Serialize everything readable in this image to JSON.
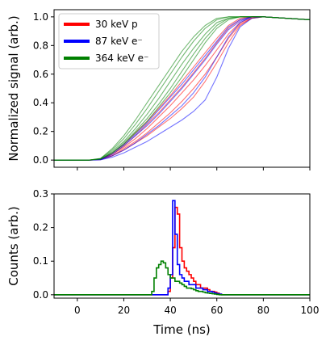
{
  "chart_data": [
    {
      "type": "line",
      "ylabel": "Normalized signal (arb.)",
      "xlabel": "",
      "xlim": [
        -10,
        100
      ],
      "ylim": [
        -0.05,
        1.05
      ],
      "x_ticks": [
        0,
        20,
        40,
        60,
        80,
        100
      ],
      "x_tick_labels_shown": false,
      "y_ticks": [
        0.0,
        0.2,
        0.4,
        0.6,
        0.8,
        1.0
      ],
      "y_tick_labels": [
        "0.0",
        "0.2",
        "0.4",
        "0.6",
        "0.8",
        "1.0"
      ],
      "legend": {
        "placement": "top-left",
        "entries": [
          {
            "label": "30 keV p",
            "color": "#ff0000"
          },
          {
            "label": "87 keV e⁻",
            "color": "#0000ff"
          },
          {
            "label": "364 keV e⁻",
            "color": "#008000"
          }
        ]
      },
      "series": [
        {
          "name": "30 keV p",
          "color": "#ff0000",
          "x": [
            -10,
            0,
            5,
            10,
            15,
            20,
            25,
            30,
            35,
            40,
            45,
            50,
            55,
            60,
            65,
            70,
            75,
            80,
            100
          ],
          "curves": [
            [
              0,
              0,
              0,
              0.005,
              0.04,
              0.09,
              0.15,
              0.22,
              0.3,
              0.38,
              0.47,
              0.56,
              0.66,
              0.77,
              0.88,
              0.96,
              0.995,
              1.0,
              0.98
            ],
            [
              0,
              0,
              0,
              0.005,
              0.04,
              0.1,
              0.17,
              0.25,
              0.33,
              0.42,
              0.51,
              0.61,
              0.71,
              0.82,
              0.92,
              0.98,
              1.0,
              1.0,
              0.98
            ],
            [
              0,
              0,
              0,
              0.003,
              0.03,
              0.08,
              0.13,
              0.19,
              0.26,
              0.33,
              0.41,
              0.5,
              0.6,
              0.72,
              0.85,
              0.95,
              0.99,
              1.0,
              0.98
            ],
            [
              0,
              0,
              0,
              0.003,
              0.03,
              0.07,
              0.12,
              0.17,
              0.23,
              0.29,
              0.36,
              0.44,
              0.55,
              0.68,
              0.82,
              0.94,
              0.99,
              1.0,
              0.98
            ],
            [
              0,
              0,
              0,
              0.005,
              0.05,
              0.11,
              0.19,
              0.27,
              0.36,
              0.45,
              0.55,
              0.65,
              0.75,
              0.85,
              0.94,
              0.99,
              1.0,
              1.0,
              0.98
            ]
          ]
        },
        {
          "name": "87 keV e⁻",
          "color": "#0000ff",
          "x": [
            -10,
            0,
            5,
            10,
            15,
            20,
            25,
            30,
            35,
            40,
            45,
            50,
            55,
            60,
            65,
            70,
            75,
            80,
            100
          ],
          "curves": [
            [
              0,
              0,
              0,
              0.005,
              0.05,
              0.11,
              0.18,
              0.26,
              0.35,
              0.44,
              0.53,
              0.63,
              0.73,
              0.83,
              0.93,
              0.98,
              1.0,
              1.0,
              0.98
            ],
            [
              0,
              0,
              0,
              0.004,
              0.04,
              0.1,
              0.17,
              0.24,
              0.32,
              0.41,
              0.5,
              0.6,
              0.7,
              0.81,
              0.91,
              0.97,
              1.0,
              1.0,
              0.98
            ],
            [
              0,
              0,
              0,
              0.002,
              0.02,
              0.05,
              0.09,
              0.13,
              0.18,
              0.23,
              0.28,
              0.34,
              0.42,
              0.58,
              0.78,
              0.93,
              0.99,
              1.0,
              0.98
            ],
            [
              0,
              0,
              0,
              0.003,
              0.03,
              0.07,
              0.12,
              0.18,
              0.24,
              0.31,
              0.38,
              0.47,
              0.58,
              0.72,
              0.86,
              0.96,
              1.0,
              1.0,
              0.98
            ]
          ]
        },
        {
          "name": "364 keV e⁻",
          "color": "#008000",
          "x": [
            -10,
            0,
            5,
            10,
            15,
            20,
            25,
            30,
            35,
            40,
            45,
            50,
            55,
            60,
            65,
            70,
            75,
            80,
            100
          ],
          "curves": [
            [
              0,
              0,
              0,
              0.01,
              0.07,
              0.15,
              0.25,
              0.36,
              0.48,
              0.6,
              0.72,
              0.83,
              0.92,
              0.98,
              1.0,
              1.0,
              1.0,
              1.0,
              0.98
            ],
            [
              0,
              0,
              0,
              0.01,
              0.06,
              0.13,
              0.22,
              0.32,
              0.43,
              0.55,
              0.67,
              0.78,
              0.88,
              0.96,
              0.99,
              1.0,
              1.0,
              1.0,
              0.98
            ],
            [
              0,
              0,
              0,
              0.008,
              0.05,
              0.12,
              0.2,
              0.29,
              0.39,
              0.5,
              0.62,
              0.74,
              0.85,
              0.94,
              0.99,
              1.0,
              1.0,
              1.0,
              0.98
            ],
            [
              0,
              0,
              0,
              0.012,
              0.08,
              0.17,
              0.28,
              0.4,
              0.52,
              0.64,
              0.76,
              0.86,
              0.94,
              0.99,
              1.0,
              1.0,
              1.0,
              1.0,
              0.98
            ],
            [
              0,
              0,
              0,
              0.006,
              0.05,
              0.11,
              0.19,
              0.27,
              0.37,
              0.47,
              0.58,
              0.7,
              0.82,
              0.92,
              0.98,
              1.0,
              1.0,
              1.0,
              0.98
            ]
          ]
        }
      ]
    },
    {
      "type": "line",
      "xlabel": "Time (ns)",
      "ylabel": "Counts (arb.)",
      "xlim": [
        -10,
        100
      ],
      "ylim": [
        -0.01,
        0.3
      ],
      "x_ticks": [
        0,
        20,
        40,
        60,
        80,
        100
      ],
      "x_tick_labels": [
        "0",
        "20",
        "40",
        "60",
        "80",
        "100"
      ],
      "y_ticks": [
        0.0,
        0.1,
        0.2,
        0.3
      ],
      "y_tick_labels": [
        "0.0",
        "0.1",
        "0.2",
        "0.3"
      ],
      "step_histogram": true,
      "bin_width": 1,
      "series": [
        {
          "name": "30 keV p",
          "color": "#ff0000",
          "x": [
            -10,
            38,
            39,
            40,
            41,
            42,
            43,
            44,
            45,
            46,
            47,
            48,
            49,
            50,
            51,
            52,
            53,
            54,
            55,
            56,
            57,
            58,
            59,
            60,
            61,
            62,
            100
          ],
          "y": [
            0,
            0,
            0.01,
            0.05,
            0.14,
            0.26,
            0.24,
            0.14,
            0.1,
            0.08,
            0.07,
            0.06,
            0.05,
            0.04,
            0.03,
            0.03,
            0.02,
            0.02,
            0.02,
            0.015,
            0.01,
            0.01,
            0.008,
            0.005,
            0.002,
            0,
            0
          ]
        },
        {
          "name": "87 keV e⁻",
          "color": "#0000ff",
          "x": [
            -10,
            38,
            39,
            40,
            41,
            42,
            43,
            44,
            45,
            46,
            47,
            48,
            49,
            50,
            51,
            52,
            53,
            54,
            55,
            56,
            57,
            58,
            59,
            60,
            61,
            62,
            100
          ],
          "y": [
            0,
            0,
            0.02,
            0.06,
            0.28,
            0.18,
            0.09,
            0.06,
            0.05,
            0.04,
            0.04,
            0.03,
            0.03,
            0.03,
            0.02,
            0.02,
            0.02,
            0.015,
            0.015,
            0.01,
            0.01,
            0.008,
            0.005,
            0.003,
            0.002,
            0,
            0
          ]
        },
        {
          "name": "364 keV e⁻",
          "color": "#008000",
          "x": [
            -10,
            31,
            32,
            33,
            34,
            35,
            36,
            37,
            38,
            39,
            40,
            41,
            42,
            43,
            44,
            45,
            46,
            47,
            48,
            49,
            50,
            51,
            52,
            53,
            54,
            55,
            56,
            57,
            58,
            59,
            60,
            61,
            100
          ],
          "y": [
            0,
            0,
            0.01,
            0.05,
            0.08,
            0.09,
            0.1,
            0.095,
            0.08,
            0.06,
            0.05,
            0.05,
            0.04,
            0.04,
            0.035,
            0.03,
            0.025,
            0.02,
            0.02,
            0.018,
            0.015,
            0.012,
            0.01,
            0.01,
            0.008,
            0.006,
            0.005,
            0.004,
            0.003,
            0.002,
            0.001,
            0,
            0
          ]
        }
      ]
    }
  ]
}
